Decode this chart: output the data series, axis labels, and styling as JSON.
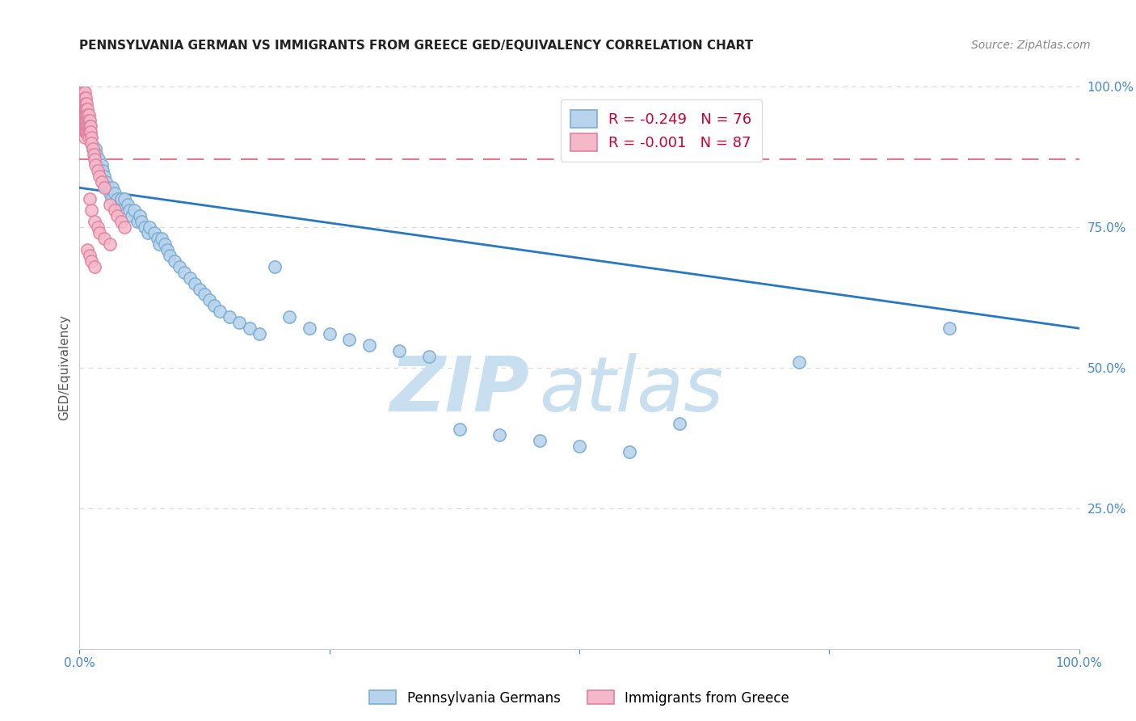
{
  "title": "PENNSYLVANIA GERMAN VS IMMIGRANTS FROM GREECE GED/EQUIVALENCY CORRELATION CHART",
  "source": "Source: ZipAtlas.com",
  "ylabel": "GED/Equivalency",
  "blue_R": -0.249,
  "blue_N": 76,
  "pink_R": -0.001,
  "pink_N": 87,
  "blue_color": "#b8d4ec",
  "blue_edge": "#7aaed4",
  "pink_color": "#f5b8c8",
  "pink_edge": "#e080a0",
  "blue_line_color": "#2878c0",
  "pink_line_color": "#e07890",
  "legend_label_blue": "Pennsylvania Germans",
  "legend_label_pink": "Immigrants from Greece",
  "watermark_zip": "ZIP",
  "watermark_atlas": "atlas",
  "watermark_color": "#d8eaf8",
  "blue_scatter_x": [
    0.003,
    0.005,
    0.006,
    0.007,
    0.008,
    0.009,
    0.01,
    0.011,
    0.012,
    0.013,
    0.015,
    0.016,
    0.017,
    0.018,
    0.019,
    0.02,
    0.022,
    0.023,
    0.025,
    0.026,
    0.028,
    0.03,
    0.032,
    0.033,
    0.035,
    0.038,
    0.04,
    0.042,
    0.045,
    0.048,
    0.05,
    0.052,
    0.055,
    0.058,
    0.06,
    0.062,
    0.065,
    0.068,
    0.07,
    0.075,
    0.078,
    0.08,
    0.082,
    0.085,
    0.088,
    0.09,
    0.095,
    0.1,
    0.105,
    0.11,
    0.115,
    0.12,
    0.125,
    0.13,
    0.135,
    0.14,
    0.15,
    0.16,
    0.17,
    0.18,
    0.195,
    0.21,
    0.23,
    0.25,
    0.27,
    0.29,
    0.32,
    0.35,
    0.38,
    0.42,
    0.46,
    0.5,
    0.55,
    0.6,
    0.72,
    0.87
  ],
  "blue_scatter_y": [
    0.98,
    0.97,
    0.96,
    0.95,
    0.94,
    0.93,
    0.92,
    0.91,
    0.9,
    0.89,
    0.88,
    0.89,
    0.88,
    0.86,
    0.87,
    0.85,
    0.86,
    0.85,
    0.84,
    0.83,
    0.82,
    0.81,
    0.8,
    0.82,
    0.81,
    0.8,
    0.79,
    0.8,
    0.8,
    0.79,
    0.78,
    0.77,
    0.78,
    0.76,
    0.77,
    0.76,
    0.75,
    0.74,
    0.75,
    0.74,
    0.73,
    0.72,
    0.73,
    0.72,
    0.71,
    0.7,
    0.69,
    0.68,
    0.67,
    0.66,
    0.65,
    0.64,
    0.63,
    0.62,
    0.61,
    0.6,
    0.59,
    0.58,
    0.57,
    0.56,
    0.68,
    0.59,
    0.57,
    0.56,
    0.55,
    0.54,
    0.53,
    0.52,
    0.39,
    0.38,
    0.37,
    0.36,
    0.35,
    0.4,
    0.51,
    0.57
  ],
  "pink_scatter_x": [
    0.001,
    0.001,
    0.001,
    0.002,
    0.002,
    0.002,
    0.002,
    0.002,
    0.002,
    0.003,
    0.003,
    0.003,
    0.003,
    0.003,
    0.003,
    0.003,
    0.004,
    0.004,
    0.004,
    0.004,
    0.004,
    0.004,
    0.004,
    0.004,
    0.005,
    0.005,
    0.005,
    0.005,
    0.005,
    0.005,
    0.005,
    0.005,
    0.005,
    0.006,
    0.006,
    0.006,
    0.006,
    0.006,
    0.006,
    0.006,
    0.007,
    0.007,
    0.007,
    0.007,
    0.007,
    0.007,
    0.008,
    0.008,
    0.008,
    0.008,
    0.008,
    0.009,
    0.009,
    0.009,
    0.009,
    0.009,
    0.01,
    0.01,
    0.01,
    0.011,
    0.011,
    0.012,
    0.012,
    0.013,
    0.014,
    0.015,
    0.016,
    0.018,
    0.02,
    0.022,
    0.025,
    0.03,
    0.035,
    0.038,
    0.042,
    0.045,
    0.01,
    0.012,
    0.015,
    0.018,
    0.02,
    0.025,
    0.03,
    0.008,
    0.01,
    0.012,
    0.015
  ],
  "pink_scatter_y": [
    0.99,
    0.98,
    0.97,
    0.99,
    0.98,
    0.97,
    0.96,
    0.95,
    0.94,
    0.99,
    0.98,
    0.97,
    0.96,
    0.95,
    0.94,
    0.93,
    0.99,
    0.98,
    0.97,
    0.96,
    0.95,
    0.94,
    0.93,
    0.92,
    0.99,
    0.98,
    0.97,
    0.96,
    0.95,
    0.94,
    0.93,
    0.92,
    0.91,
    0.98,
    0.97,
    0.96,
    0.95,
    0.94,
    0.93,
    0.92,
    0.97,
    0.96,
    0.95,
    0.94,
    0.93,
    0.92,
    0.96,
    0.95,
    0.94,
    0.93,
    0.92,
    0.95,
    0.94,
    0.93,
    0.92,
    0.91,
    0.94,
    0.93,
    0.92,
    0.93,
    0.92,
    0.91,
    0.9,
    0.89,
    0.88,
    0.87,
    0.86,
    0.85,
    0.84,
    0.83,
    0.82,
    0.79,
    0.78,
    0.77,
    0.76,
    0.75,
    0.8,
    0.78,
    0.76,
    0.75,
    0.74,
    0.73,
    0.72,
    0.71,
    0.7,
    0.69,
    0.68
  ],
  "blue_line_x": [
    0.0,
    1.0
  ],
  "blue_line_y_start": 0.82,
  "blue_line_y_end": 0.57,
  "pink_line_y": 0.87,
  "xlim": [
    0.0,
    1.0
  ],
  "ylim": [
    0.0,
    1.0
  ],
  "yticks": [
    0.0,
    0.25,
    0.5,
    0.75,
    1.0
  ],
  "ytick_labels": [
    "",
    "25.0%",
    "50.0%",
    "75.0%",
    "100.0%"
  ],
  "xtick_positions": [
    0.0,
    0.25,
    0.5,
    0.75,
    1.0
  ],
  "xtick_labels": [
    "0.0%",
    "",
    "",
    "",
    "100.0%"
  ],
  "tick_color": "#4488cc",
  "grid_color": "#d8d8d8",
  "spine_color": "#cccccc",
  "title_fontsize": 11,
  "axis_fontsize": 11,
  "source_text": "Source: ZipAtlas.com"
}
